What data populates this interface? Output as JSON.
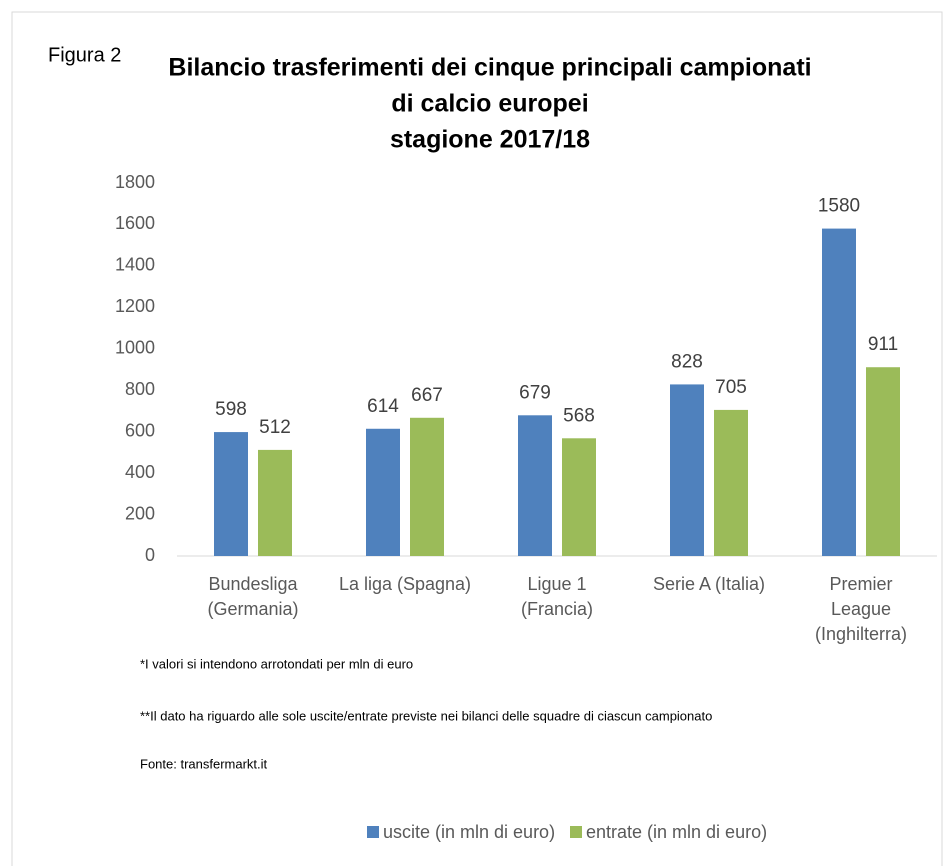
{
  "chart_data": {
    "type": "bar",
    "label": "Figura 2",
    "title": [
      "Bilancio trasferimenti dei cinque principali campionati",
      "di calcio europei",
      "stagione 2017/18"
    ],
    "categories": [
      [
        "Bundesliga",
        "(Germania)"
      ],
      [
        "La liga (Spagna)"
      ],
      [
        "Ligue 1",
        "(Francia)"
      ],
      [
        "Serie A (Italia)"
      ],
      [
        "Premier",
        "League",
        "(Inghilterra)"
      ]
    ],
    "series": [
      {
        "name": "uscite (in mln di euro)",
        "color": "#4f81bd",
        "values": [
          598,
          614,
          679,
          828,
          1580
        ]
      },
      {
        "name": "entrate (in mln di euro)",
        "color": "#9bbb59",
        "values": [
          512,
          667,
          568,
          705,
          911
        ]
      }
    ],
    "ylim": [
      0,
      1800
    ],
    "yticks": [
      0,
      200,
      400,
      600,
      800,
      1000,
      1200,
      1400,
      1600,
      1800
    ],
    "grid": false,
    "legend": "bottom",
    "notes": [
      "*I valori si intendono arrotondati per mln di euro",
      "**Il dato ha riguardo alle sole uscite/entrate previste nei bilanci delle squadre di ciascun campionato",
      "Fonte: transfermarkt.it"
    ]
  }
}
